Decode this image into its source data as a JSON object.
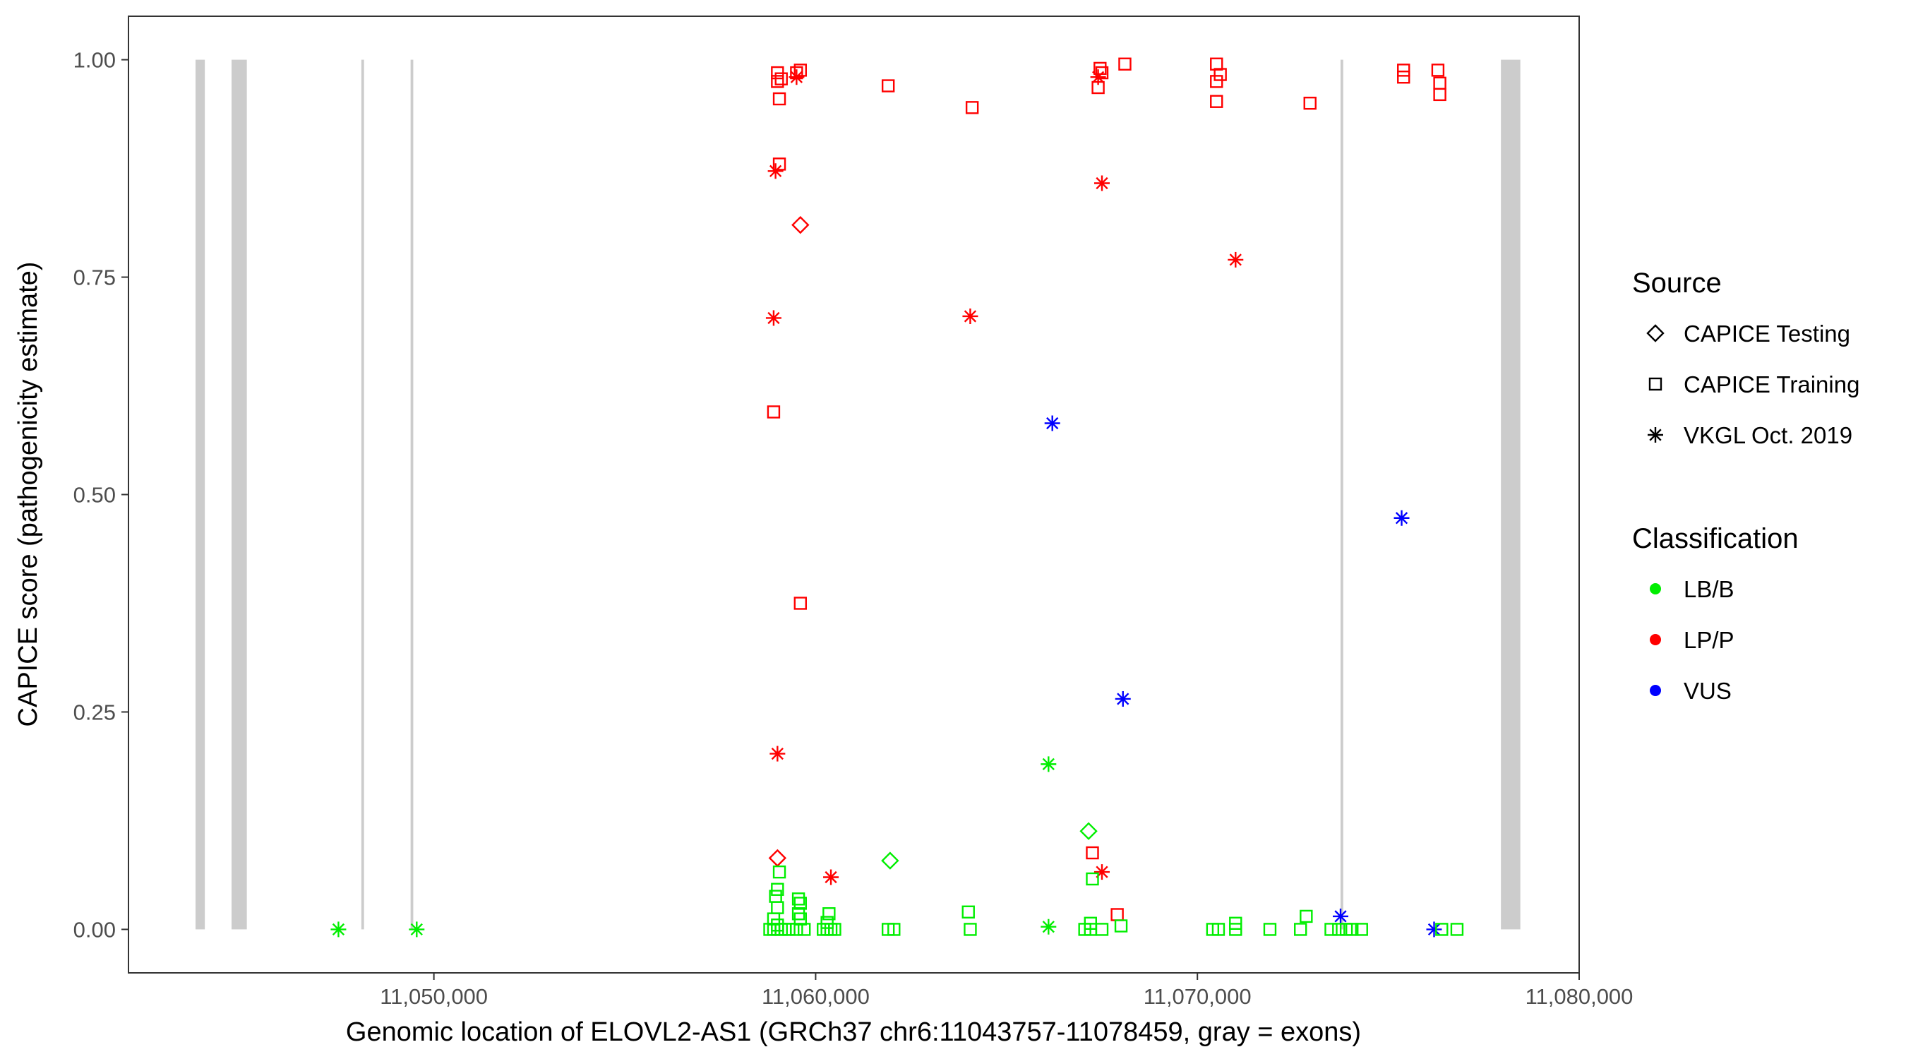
{
  "chart_data": {
    "type": "scatter",
    "xlabel": "Genomic location of ELOVL2-AS1 (GRCh37 chr6:11043757-11078459, gray = exons)",
    "ylabel": "CAPICE score (pathogenicity estimate)",
    "xlim": [
      11042000,
      11080000
    ],
    "ylim": [
      -0.05,
      1.05
    ],
    "x_ticks": [
      {
        "value": 11050000,
        "label": "11,050,000"
      },
      {
        "value": 11060000,
        "label": "11,060,000"
      },
      {
        "value": 11070000,
        "label": "11,070,000"
      },
      {
        "value": 11080000,
        "label": "11,080,000"
      }
    ],
    "y_ticks": [
      {
        "value": 0,
        "label": "0.00"
      },
      {
        "value": 0.25,
        "label": "0.25"
      },
      {
        "value": 0.5,
        "label": "0.50"
      },
      {
        "value": 0.75,
        "label": "0.75"
      },
      {
        "value": 1,
        "label": "1.00"
      }
    ],
    "grid": false,
    "exons": [
      {
        "start": 11043757,
        "end": 11044000
      },
      {
        "start": 11044700,
        "end": 11045100
      },
      {
        "start": 11048100,
        "end": 11048170
      },
      {
        "start": 11049390,
        "end": 11049460
      },
      {
        "start": 11073750,
        "end": 11073820
      },
      {
        "start": 11077950,
        "end": 11078459
      }
    ],
    "legend": {
      "position": "right",
      "source_title": "Source",
      "source_items": [
        {
          "label": "CAPICE Testing",
          "shape": "diamond"
        },
        {
          "label": "CAPICE Training",
          "shape": "square"
        },
        {
          "label": "VKGL Oct. 2019",
          "shape": "asterisk"
        }
      ],
      "class_title": "Classification",
      "class_items": [
        {
          "label": "LB/B",
          "color": "#00ee00"
        },
        {
          "label": "LP/P",
          "color": "#ff0000"
        },
        {
          "label": "VUS",
          "color": "#0000ff"
        }
      ]
    },
    "colors": {
      "LB/B": "#00ee00",
      "LP/P": "#ff0000",
      "VUS": "#0000ff",
      "exon": "#cccccc"
    },
    "points": [
      {
        "x": 11059000,
        "y": 0.985,
        "shape": "square",
        "class": "LP/P"
      },
      {
        "x": 11059000,
        "y": 0.975,
        "shape": "square",
        "class": "LP/P"
      },
      {
        "x": 11059050,
        "y": 0.955,
        "shape": "square",
        "class": "LP/P"
      },
      {
        "x": 11059100,
        "y": 0.978,
        "shape": "square",
        "class": "LP/P"
      },
      {
        "x": 11059500,
        "y": 0.985,
        "shape": "square",
        "class": "LP/P"
      },
      {
        "x": 11059600,
        "y": 0.988,
        "shape": "square",
        "class": "LP/P"
      },
      {
        "x": 11059500,
        "y": 0.98,
        "shape": "asterisk",
        "class": "LP/P"
      },
      {
        "x": 11061900,
        "y": 0.97,
        "shape": "square",
        "class": "LP/P"
      },
      {
        "x": 11064100,
        "y": 0.945,
        "shape": "square",
        "class": "LP/P"
      },
      {
        "x": 11067450,
        "y": 0.99,
        "shape": "square",
        "class": "LP/P"
      },
      {
        "x": 11067500,
        "y": 0.985,
        "shape": "square",
        "class": "LP/P"
      },
      {
        "x": 11067400,
        "y": 0.98,
        "shape": "asterisk",
        "class": "LP/P"
      },
      {
        "x": 11067400,
        "y": 0.968,
        "shape": "square",
        "class": "LP/P"
      },
      {
        "x": 11068100,
        "y": 0.995,
        "shape": "square",
        "class": "LP/P"
      },
      {
        "x": 11070500,
        "y": 0.995,
        "shape": "square",
        "class": "LP/P"
      },
      {
        "x": 11070600,
        "y": 0.983,
        "shape": "square",
        "class": "LP/P"
      },
      {
        "x": 11070500,
        "y": 0.975,
        "shape": "square",
        "class": "LP/P"
      },
      {
        "x": 11070500,
        "y": 0.952,
        "shape": "square",
        "class": "LP/P"
      },
      {
        "x": 11072950,
        "y": 0.95,
        "shape": "square",
        "class": "LP/P"
      },
      {
        "x": 11075400,
        "y": 0.988,
        "shape": "square",
        "class": "LP/P"
      },
      {
        "x": 11075400,
        "y": 0.98,
        "shape": "square",
        "class": "LP/P"
      },
      {
        "x": 11076300,
        "y": 0.988,
        "shape": "square",
        "class": "LP/P"
      },
      {
        "x": 11076350,
        "y": 0.973,
        "shape": "square",
        "class": "LP/P"
      },
      {
        "x": 11076350,
        "y": 0.96,
        "shape": "square",
        "class": "LP/P"
      },
      {
        "x": 11059050,
        "y": 0.88,
        "shape": "square",
        "class": "LP/P"
      },
      {
        "x": 11058950,
        "y": 0.872,
        "shape": "asterisk",
        "class": "LP/P"
      },
      {
        "x": 11067500,
        "y": 0.858,
        "shape": "asterisk",
        "class": "LP/P"
      },
      {
        "x": 11059600,
        "y": 0.81,
        "shape": "diamond",
        "class": "LP/P"
      },
      {
        "x": 11071000,
        "y": 0.77,
        "shape": "asterisk",
        "class": "LP/P"
      },
      {
        "x": 11058900,
        "y": 0.703,
        "shape": "asterisk",
        "class": "LP/P"
      },
      {
        "x": 11064050,
        "y": 0.705,
        "shape": "asterisk",
        "class": "LP/P"
      },
      {
        "x": 11058900,
        "y": 0.595,
        "shape": "square",
        "class": "LP/P"
      },
      {
        "x": 11066200,
        "y": 0.582,
        "shape": "asterisk",
        "class": "VUS"
      },
      {
        "x": 11075350,
        "y": 0.473,
        "shape": "asterisk",
        "class": "VUS"
      },
      {
        "x": 11059600,
        "y": 0.375,
        "shape": "square",
        "class": "LP/P"
      },
      {
        "x": 11068050,
        "y": 0.265,
        "shape": "asterisk",
        "class": "VUS"
      },
      {
        "x": 11059000,
        "y": 0.202,
        "shape": "asterisk",
        "class": "LP/P"
      },
      {
        "x": 11066100,
        "y": 0.19,
        "shape": "asterisk",
        "class": "LB/B"
      },
      {
        "x": 11067150,
        "y": 0.113,
        "shape": "diamond",
        "class": "LB/B"
      },
      {
        "x": 11067250,
        "y": 0.088,
        "shape": "square",
        "class": "LP/P"
      },
      {
        "x": 11059000,
        "y": 0.082,
        "shape": "diamond",
        "class": "LP/P"
      },
      {
        "x": 11061950,
        "y": 0.079,
        "shape": "diamond",
        "class": "LB/B"
      },
      {
        "x": 11059050,
        "y": 0.066,
        "shape": "square",
        "class": "LB/B"
      },
      {
        "x": 11067500,
        "y": 0.066,
        "shape": "asterisk",
        "class": "LP/P"
      },
      {
        "x": 11060400,
        "y": 0.06,
        "shape": "asterisk",
        "class": "LP/P"
      },
      {
        "x": 11067250,
        "y": 0.058,
        "shape": "square",
        "class": "LB/B"
      },
      {
        "x": 11059000,
        "y": 0.046,
        "shape": "square",
        "class": "LB/B"
      },
      {
        "x": 11058950,
        "y": 0.038,
        "shape": "square",
        "class": "LB/B"
      },
      {
        "x": 11059550,
        "y": 0.035,
        "shape": "square",
        "class": "LB/B"
      },
      {
        "x": 11059600,
        "y": 0.03,
        "shape": "square",
        "class": "LB/B"
      },
      {
        "x": 11059000,
        "y": 0.025,
        "shape": "square",
        "class": "LB/B"
      },
      {
        "x": 11064000,
        "y": 0.02,
        "shape": "square",
        "class": "LB/B"
      },
      {
        "x": 11060350,
        "y": 0.018,
        "shape": "square",
        "class": "LB/B"
      },
      {
        "x": 11059550,
        "y": 0.018,
        "shape": "square",
        "class": "LB/B"
      },
      {
        "x": 11067900,
        "y": 0.017,
        "shape": "square",
        "class": "LP/P"
      },
      {
        "x": 11072850,
        "y": 0.015,
        "shape": "square",
        "class": "LB/B"
      },
      {
        "x": 11073750,
        "y": 0.015,
        "shape": "asterisk",
        "class": "VUS"
      },
      {
        "x": 11058900,
        "y": 0.012,
        "shape": "square",
        "class": "LB/B"
      },
      {
        "x": 11059600,
        "y": 0.012,
        "shape": "square",
        "class": "LB/B"
      },
      {
        "x": 11060300,
        "y": 0.008,
        "shape": "square",
        "class": "LB/B"
      },
      {
        "x": 11067200,
        "y": 0.007,
        "shape": "square",
        "class": "LB/B"
      },
      {
        "x": 11071000,
        "y": 0.007,
        "shape": "square",
        "class": "LB/B"
      },
      {
        "x": 11059000,
        "y": 0.005,
        "shape": "square",
        "class": "LB/B"
      },
      {
        "x": 11068000,
        "y": 0.004,
        "shape": "square",
        "class": "LB/B"
      },
      {
        "x": 11047500,
        "y": 0.0,
        "shape": "asterisk",
        "class": "LB/B"
      },
      {
        "x": 11049550,
        "y": 0.0,
        "shape": "asterisk",
        "class": "LB/B"
      },
      {
        "x": 11066100,
        "y": 0.003,
        "shape": "asterisk",
        "class": "LB/B"
      },
      {
        "x": 11058800,
        "y": 0.0,
        "shape": "square",
        "class": "LB/B"
      },
      {
        "x": 11058900,
        "y": 0.0,
        "shape": "square",
        "class": "LB/B"
      },
      {
        "x": 11059000,
        "y": 0.0,
        "shape": "square",
        "class": "LB/B"
      },
      {
        "x": 11059100,
        "y": 0.0,
        "shape": "square",
        "class": "LB/B"
      },
      {
        "x": 11059200,
        "y": 0.0,
        "shape": "square",
        "class": "LB/B"
      },
      {
        "x": 11059300,
        "y": 0.0,
        "shape": "square",
        "class": "LB/B"
      },
      {
        "x": 11059500,
        "y": 0.0,
        "shape": "square",
        "class": "LB/B"
      },
      {
        "x": 11059700,
        "y": 0.0,
        "shape": "square",
        "class": "LB/B"
      },
      {
        "x": 11060200,
        "y": 0.0,
        "shape": "square",
        "class": "LB/B"
      },
      {
        "x": 11060300,
        "y": 0.0,
        "shape": "square",
        "class": "LB/B"
      },
      {
        "x": 11060400,
        "y": 0.0,
        "shape": "square",
        "class": "LB/B"
      },
      {
        "x": 11060500,
        "y": 0.0,
        "shape": "square",
        "class": "LB/B"
      },
      {
        "x": 11061900,
        "y": 0.0,
        "shape": "square",
        "class": "LB/B"
      },
      {
        "x": 11062050,
        "y": 0.0,
        "shape": "square",
        "class": "LB/B"
      },
      {
        "x": 11064050,
        "y": 0.0,
        "shape": "square",
        "class": "LB/B"
      },
      {
        "x": 11067050,
        "y": 0.0,
        "shape": "square",
        "class": "LB/B"
      },
      {
        "x": 11067200,
        "y": 0.0,
        "shape": "square",
        "class": "LB/B"
      },
      {
        "x": 11067500,
        "y": 0.0,
        "shape": "square",
        "class": "LB/B"
      },
      {
        "x": 11070400,
        "y": 0.0,
        "shape": "square",
        "class": "LB/B"
      },
      {
        "x": 11070550,
        "y": 0.0,
        "shape": "square",
        "class": "LB/B"
      },
      {
        "x": 11071000,
        "y": 0.0,
        "shape": "square",
        "class": "LB/B"
      },
      {
        "x": 11071900,
        "y": 0.0,
        "shape": "square",
        "class": "LB/B"
      },
      {
        "x": 11072700,
        "y": 0.0,
        "shape": "square",
        "class": "LB/B"
      },
      {
        "x": 11073500,
        "y": 0.0,
        "shape": "square",
        "class": "LB/B"
      },
      {
        "x": 11073700,
        "y": 0.0,
        "shape": "square",
        "class": "LB/B"
      },
      {
        "x": 11073900,
        "y": 0.0,
        "shape": "square",
        "class": "LB/B"
      },
      {
        "x": 11074050,
        "y": 0.0,
        "shape": "square",
        "class": "LB/B"
      },
      {
        "x": 11074300,
        "y": 0.0,
        "shape": "square",
        "class": "LB/B"
      },
      {
        "x": 11076200,
        "y": 0.0,
        "shape": "asterisk",
        "class": "VUS"
      },
      {
        "x": 11076400,
        "y": 0.0,
        "shape": "square",
        "class": "LB/B"
      },
      {
        "x": 11076800,
        "y": 0.0,
        "shape": "square",
        "class": "LB/B"
      }
    ]
  }
}
